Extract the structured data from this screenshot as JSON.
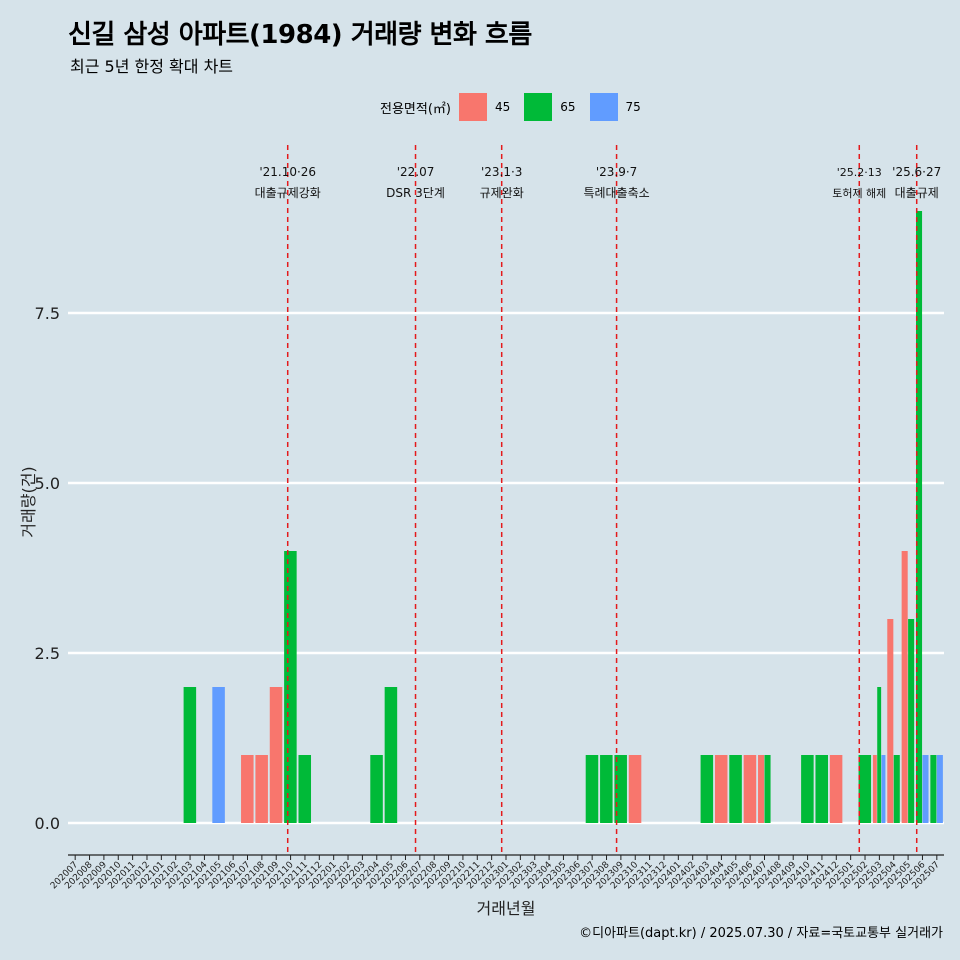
{
  "title": "신길 삼성 아파트(1984) 거래량 변화 흐름",
  "subtitle": "최근 5년 한정 확대 차트",
  "caption": "©디아파트(dapt.kr) / 2025.07.30 / 자료=국토교통부 실거래가",
  "legend": {
    "title": "전용면적(㎡)",
    "items": [
      {
        "label": "45",
        "color": "#f8766d"
      },
      {
        "label": "65",
        "color": "#00ba38"
      },
      {
        "label": "75",
        "color": "#619cff"
      }
    ]
  },
  "chart_data": {
    "type": "bar",
    "xlabel": "거래년월",
    "ylabel": "거래량(건)",
    "ylim": [
      -0.5,
      9.0
    ],
    "yticks": [
      "0.0",
      "2.5",
      "5.0",
      "7.5"
    ],
    "categories": [
      "202007",
      "202008",
      "202009",
      "202010",
      "202011",
      "202012",
      "202101",
      "202102",
      "202103",
      "202104",
      "202105",
      "202106",
      "202107",
      "202108",
      "202109",
      "202110",
      "202111",
      "202112",
      "202201",
      "202202",
      "202203",
      "202204",
      "202205",
      "202206",
      "202207",
      "202208",
      "202209",
      "202210",
      "202211",
      "202212",
      "202301",
      "202302",
      "202303",
      "202304",
      "202305",
      "202306",
      "202307",
      "202308",
      "202309",
      "202310",
      "202311",
      "202312",
      "202401",
      "202402",
      "202403",
      "202404",
      "202405",
      "202406",
      "202407",
      "202408",
      "202409",
      "202410",
      "202411",
      "202412",
      "202501",
      "202502",
      "202503",
      "202504",
      "202505",
      "202506",
      "202507"
    ],
    "bars": [
      {
        "x": "202103",
        "series": "65",
        "value": 2
      },
      {
        "x": "202105",
        "series": "75",
        "value": 2
      },
      {
        "x": "202107",
        "series": "45",
        "value": 1
      },
      {
        "x": "202108",
        "series": "45",
        "value": 1
      },
      {
        "x": "202109",
        "series": "45",
        "value": 2
      },
      {
        "x": "202110",
        "series": "65",
        "value": 4
      },
      {
        "x": "202111",
        "series": "65",
        "value": 1
      },
      {
        "x": "202204",
        "series": "65",
        "value": 1
      },
      {
        "x": "202205",
        "series": "65",
        "value": 2
      },
      {
        "x": "202307",
        "series": "65",
        "value": 1
      },
      {
        "x": "202308",
        "series": "65",
        "value": 1
      },
      {
        "x": "202309",
        "series": "65",
        "value": 1
      },
      {
        "x": "202310",
        "series": "45",
        "value": 1
      },
      {
        "x": "202403",
        "series": "65",
        "value": 1
      },
      {
        "x": "202404",
        "series": "45",
        "value": 1
      },
      {
        "x": "202405",
        "series": "65",
        "value": 1
      },
      {
        "x": "202406",
        "series": "45",
        "value": 1
      },
      {
        "x": "202407",
        "series": "45",
        "value": 1
      },
      {
        "x": "202407",
        "series": "65",
        "value": 1
      },
      {
        "x": "202410",
        "series": "65",
        "value": 1
      },
      {
        "x": "202411",
        "series": "65",
        "value": 1
      },
      {
        "x": "202412",
        "series": "45",
        "value": 1
      },
      {
        "x": "202502",
        "series": "65",
        "value": 1
      },
      {
        "x": "202503",
        "series": "45",
        "value": 1
      },
      {
        "x": "202503",
        "series": "65",
        "value": 2
      },
      {
        "x": "202503",
        "series": "75",
        "value": 1
      },
      {
        "x": "202504",
        "series": "45",
        "value": 3
      },
      {
        "x": "202504",
        "series": "65",
        "value": 1
      },
      {
        "x": "202505",
        "series": "45",
        "value": 4
      },
      {
        "x": "202505",
        "series": "65",
        "value": 3
      },
      {
        "x": "202506",
        "series": "65",
        "value": 9
      },
      {
        "x": "202506",
        "series": "75",
        "value": 1
      },
      {
        "x": "202507",
        "series": "65",
        "value": 1
      },
      {
        "x": "202507",
        "series": "75",
        "value": 1
      }
    ],
    "annotations": [
      {
        "x": 15.3,
        "date": "'21.10·26",
        "text": "대출규제강화",
        "small": false
      },
      {
        "x": 24.2,
        "date": "'22.07",
        "text": "DSR 3단계",
        "small": false
      },
      {
        "x": 30.2,
        "date": "'23.1·3",
        "text": "규제완화",
        "small": false
      },
      {
        "x": 38.2,
        "date": "'23.9·7",
        "text": "특례대출축소",
        "small": false
      },
      {
        "x": 55.1,
        "date": "'25.2·13",
        "text": "토허제 해제",
        "small": true
      },
      {
        "x": 59.1,
        "date": "'25.6·27",
        "text": "대출규제",
        "small": false
      }
    ]
  }
}
